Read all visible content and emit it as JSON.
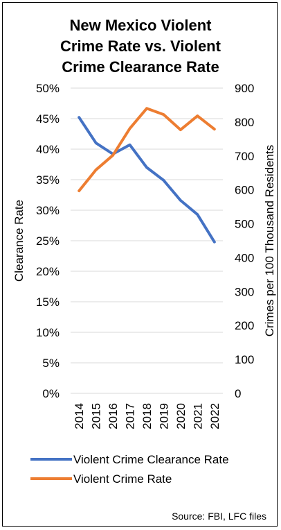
{
  "chart_data": {
    "type": "line",
    "title_lines": [
      "New Mexico Violent",
      "Crime Rate vs. Violent",
      "Crime Clearance Rate"
    ],
    "x": [
      "2014",
      "2015",
      "2016",
      "2017",
      "2018",
      "2019",
      "2020",
      "2021",
      "2022"
    ],
    "y_left": {
      "label": "Clearance Rate",
      "min": 0,
      "max": 50,
      "step": 5,
      "ticks": [
        "0%",
        "5%",
        "10%",
        "15%",
        "20%",
        "25%",
        "30%",
        "35%",
        "40%",
        "45%",
        "50%"
      ]
    },
    "y_right": {
      "label": "Crimes per 100 Thousand Residents",
      "min": 0,
      "max": 900,
      "step": 100,
      "ticks": [
        "0",
        "100",
        "200",
        "300",
        "400",
        "500",
        "600",
        "700",
        "800",
        "900"
      ]
    },
    "series": [
      {
        "name": "Violent Crime Clearance Rate",
        "axis": "left",
        "color": "#4472C4",
        "values": [
          45.2,
          41.0,
          39.2,
          40.7,
          37.0,
          34.9,
          31.6,
          29.3,
          24.8
        ]
      },
      {
        "name": "Violent Crime Rate",
        "axis": "right",
        "color": "#ED7D31",
        "values": [
          597,
          659,
          702,
          781,
          840,
          822,
          777,
          818,
          779
        ]
      }
    ],
    "grid": true,
    "legend_position": "bottom",
    "source": "Source: FBI, LFC files"
  }
}
